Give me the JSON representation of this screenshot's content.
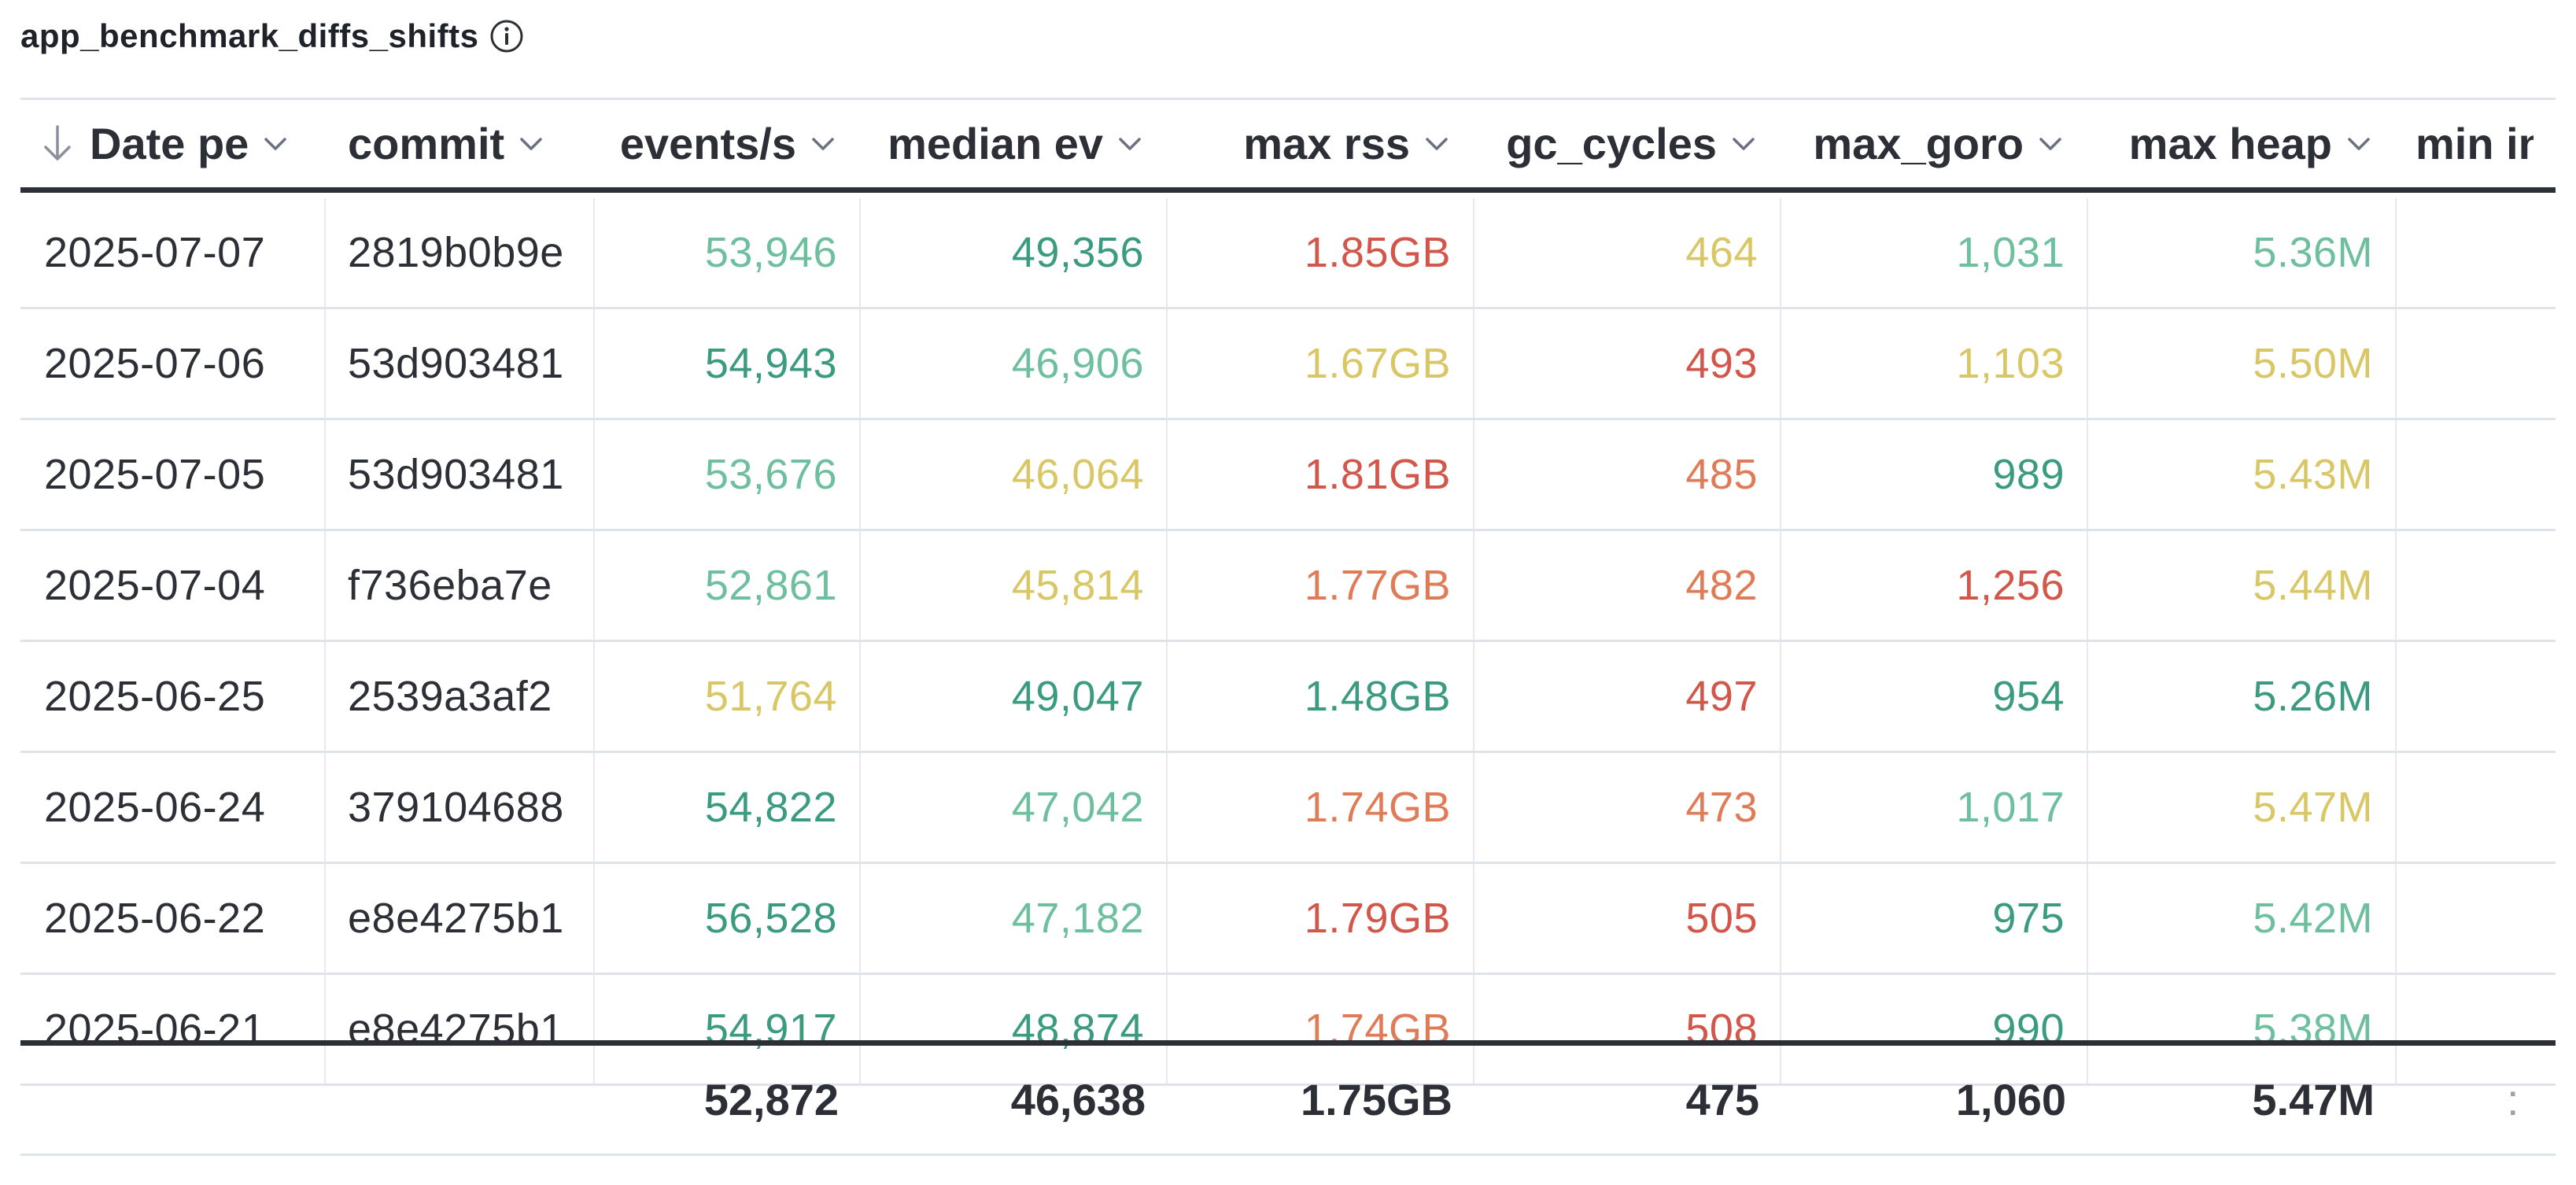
{
  "widget": {
    "title": "app_benchmark_diffs_shifts"
  },
  "colors": {
    "teal_dark": "#3a9b80",
    "teal_light": "#6dbf9e",
    "yellow": "#d9c766",
    "orange": "#e07b58",
    "red": "#d2564a",
    "text": "#2c2f36"
  },
  "columns": [
    {
      "key": "date",
      "label": "Date pe",
      "align": "left",
      "sorted": true
    },
    {
      "key": "commit",
      "label": "commit",
      "align": "left"
    },
    {
      "key": "events",
      "label": "events/s",
      "align": "right"
    },
    {
      "key": "median",
      "label": "median ev",
      "align": "right"
    },
    {
      "key": "rss",
      "label": "max rss",
      "align": "right"
    },
    {
      "key": "gc",
      "label": "gc_cycles",
      "align": "right"
    },
    {
      "key": "goro",
      "label": "max_goro",
      "align": "right"
    },
    {
      "key": "heap",
      "label": "max heap",
      "align": "right"
    },
    {
      "key": "minin",
      "label": "min in",
      "align": "right"
    }
  ],
  "rows": [
    {
      "date": "2025-07-07",
      "commit": "2819b0b9e",
      "events": {
        "v": "53,946",
        "c": "teal_light"
      },
      "median": {
        "v": "49,356",
        "c": "teal_dark"
      },
      "rss": {
        "v": "1.85GB",
        "c": "red"
      },
      "gc": {
        "v": "464",
        "c": "yellow"
      },
      "goro": {
        "v": "1,031",
        "c": "teal_light"
      },
      "heap": {
        "v": "5.36M",
        "c": "teal_light"
      },
      "minin": {
        "v": "",
        "c": "text"
      }
    },
    {
      "date": "2025-07-06",
      "commit": "53d903481",
      "events": {
        "v": "54,943",
        "c": "teal_dark"
      },
      "median": {
        "v": "46,906",
        "c": "teal_light"
      },
      "rss": {
        "v": "1.67GB",
        "c": "yellow"
      },
      "gc": {
        "v": "493",
        "c": "red"
      },
      "goro": {
        "v": "1,103",
        "c": "yellow"
      },
      "heap": {
        "v": "5.50M",
        "c": "yellow"
      },
      "minin": {
        "v": "",
        "c": "text"
      }
    },
    {
      "date": "2025-07-05",
      "commit": "53d903481",
      "events": {
        "v": "53,676",
        "c": "teal_light"
      },
      "median": {
        "v": "46,064",
        "c": "yellow"
      },
      "rss": {
        "v": "1.81GB",
        "c": "red"
      },
      "gc": {
        "v": "485",
        "c": "orange"
      },
      "goro": {
        "v": "989",
        "c": "teal_dark"
      },
      "heap": {
        "v": "5.43M",
        "c": "yellow"
      },
      "minin": {
        "v": "",
        "c": "text"
      }
    },
    {
      "date": "2025-07-04",
      "commit": "f736eba7e",
      "events": {
        "v": "52,861",
        "c": "teal_light"
      },
      "median": {
        "v": "45,814",
        "c": "yellow"
      },
      "rss": {
        "v": "1.77GB",
        "c": "orange"
      },
      "gc": {
        "v": "482",
        "c": "orange"
      },
      "goro": {
        "v": "1,256",
        "c": "red"
      },
      "heap": {
        "v": "5.44M",
        "c": "yellow"
      },
      "minin": {
        "v": "",
        "c": "text"
      }
    },
    {
      "date": "2025-06-25",
      "commit": "2539a3af2",
      "events": {
        "v": "51,764",
        "c": "yellow"
      },
      "median": {
        "v": "49,047",
        "c": "teal_dark"
      },
      "rss": {
        "v": "1.48GB",
        "c": "teal_dark"
      },
      "gc": {
        "v": "497",
        "c": "red"
      },
      "goro": {
        "v": "954",
        "c": "teal_dark"
      },
      "heap": {
        "v": "5.26M",
        "c": "teal_dark"
      },
      "minin": {
        "v": "",
        "c": "text"
      }
    },
    {
      "date": "2025-06-24",
      "commit": "379104688",
      "events": {
        "v": "54,822",
        "c": "teal_dark"
      },
      "median": {
        "v": "47,042",
        "c": "teal_light"
      },
      "rss": {
        "v": "1.74GB",
        "c": "orange"
      },
      "gc": {
        "v": "473",
        "c": "orange"
      },
      "goro": {
        "v": "1,017",
        "c": "teal_light"
      },
      "heap": {
        "v": "5.47M",
        "c": "yellow"
      },
      "minin": {
        "v": "",
        "c": "text"
      }
    },
    {
      "date": "2025-06-22",
      "commit": "e8e4275b1",
      "events": {
        "v": "56,528",
        "c": "teal_dark"
      },
      "median": {
        "v": "47,182",
        "c": "teal_light"
      },
      "rss": {
        "v": "1.79GB",
        "c": "red"
      },
      "gc": {
        "v": "505",
        "c": "red"
      },
      "goro": {
        "v": "975",
        "c": "teal_dark"
      },
      "heap": {
        "v": "5.42M",
        "c": "teal_light"
      },
      "minin": {
        "v": "",
        "c": "text"
      }
    },
    {
      "date": "2025-06-21",
      "commit": "e8e4275b1",
      "events": {
        "v": "54,917",
        "c": "teal_dark"
      },
      "median": {
        "v": "48,874",
        "c": "teal_dark"
      },
      "rss": {
        "v": "1.74GB",
        "c": "orange"
      },
      "gc": {
        "v": "508",
        "c": "red"
      },
      "goro": {
        "v": "990",
        "c": "teal_dark"
      },
      "heap": {
        "v": "5.38M",
        "c": "teal_light"
      },
      "minin": {
        "v": "",
        "c": "text"
      }
    }
  ],
  "totals": {
    "date": "",
    "commit": "",
    "events": "52,872",
    "median": "46,638",
    "rss": "1.75GB",
    "gc": "475",
    "goro": "1,060",
    "heap": "5.47M",
    "minin": ":"
  },
  "icons": {
    "info": "info-icon",
    "sort": "arrow-down-icon",
    "column_menu": "chevron-down-icon"
  }
}
